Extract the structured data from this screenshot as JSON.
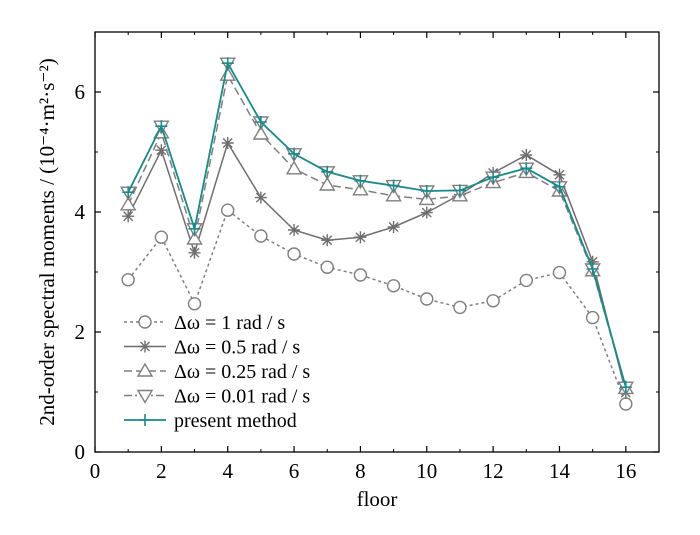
{
  "chart_data": {
    "type": "line",
    "xlabel": "floor",
    "ylabel": "2nd-order spectral moments / (10⁻⁴·m²·s⁻²)",
    "xlim": [
      0,
      17
    ],
    "ylim": [
      0,
      7
    ],
    "xticks": [
      0,
      2,
      4,
      6,
      8,
      10,
      12,
      14,
      16
    ],
    "yticks": [
      0,
      2,
      4,
      6
    ],
    "x": [
      1,
      2,
      3,
      4,
      5,
      6,
      7,
      8,
      9,
      10,
      11,
      12,
      13,
      14,
      15,
      16
    ],
    "grid": false,
    "legend_position": "bottom-left",
    "series": [
      {
        "name": "Δω = 1 rad / s",
        "color": "#7f7f7f",
        "line_style": "dotted",
        "marker": "circle",
        "values": [
          2.87,
          3.58,
          2.47,
          4.03,
          3.6,
          3.3,
          3.08,
          2.95,
          2.77,
          2.55,
          2.41,
          2.52,
          2.86,
          2.99,
          2.24,
          0.8
        ]
      },
      {
        "name": "Δω = 0.5 rad / s",
        "color": "#6e6e6e",
        "line_style": "solid",
        "marker": "asterisk",
        "values": [
          3.93,
          5.03,
          3.32,
          5.15,
          4.24,
          3.7,
          3.53,
          3.58,
          3.75,
          3.99,
          4.29,
          4.65,
          4.95,
          4.62,
          3.17,
          0.99
        ]
      },
      {
        "name": "Δω = 0.25 rad / s",
        "color": "#7f7f7f",
        "line_style": "dashed",
        "marker": "triangle-up",
        "values": [
          4.12,
          5.32,
          3.55,
          6.28,
          5.3,
          4.72,
          4.45,
          4.37,
          4.27,
          4.21,
          4.27,
          4.49,
          4.66,
          4.35,
          3.02,
          1.06
        ]
      },
      {
        "name": "Δω = 0.01 rad / s",
        "color": "#7f7f7f",
        "line_style": "dashdot",
        "marker": "triangle-down",
        "values": [
          4.33,
          5.43,
          3.72,
          6.48,
          5.5,
          4.97,
          4.67,
          4.52,
          4.44,
          4.35,
          4.36,
          4.58,
          4.73,
          4.42,
          3.05,
          1.08
        ]
      },
      {
        "name": "present method",
        "color": "#1b8a8a",
        "line_style": "solid",
        "marker": "plus",
        "values": [
          4.33,
          5.43,
          3.72,
          6.48,
          5.5,
          4.97,
          4.67,
          4.52,
          4.44,
          4.35,
          4.36,
          4.58,
          4.73,
          4.42,
          3.05,
          1.08
        ]
      }
    ]
  }
}
